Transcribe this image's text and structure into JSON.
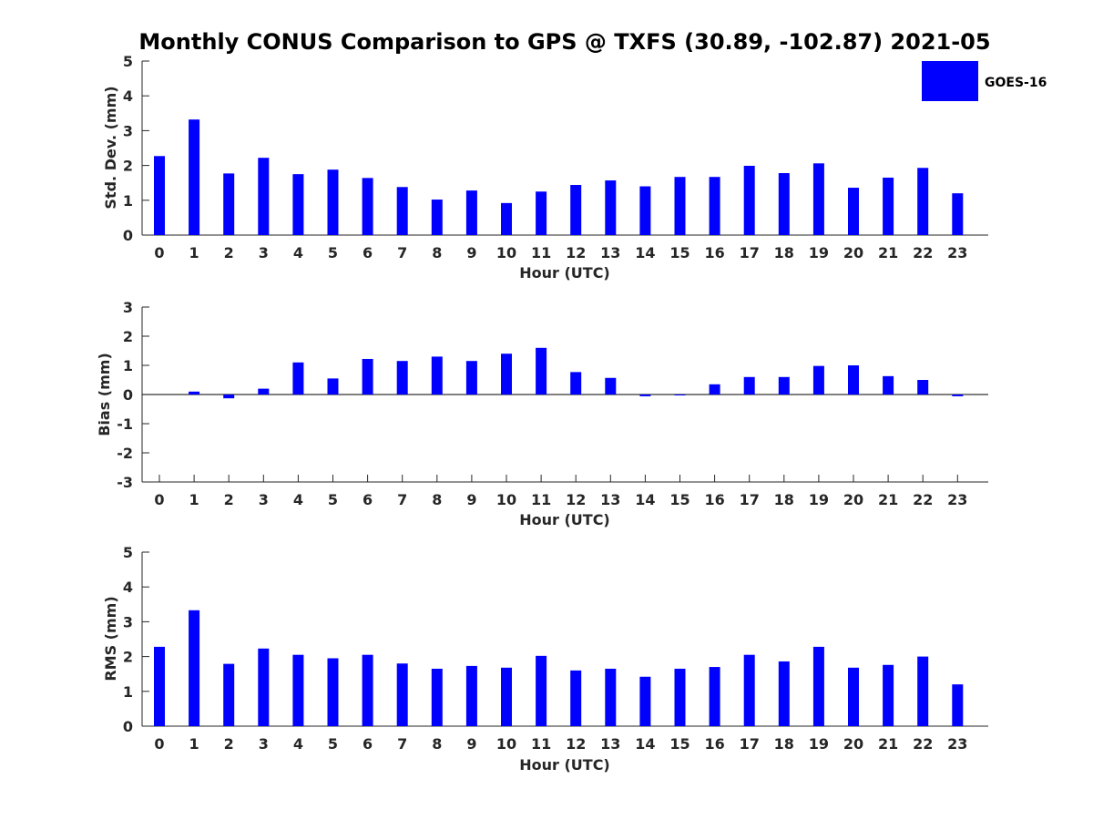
{
  "title": "Monthly CONUS Comparison to GPS @ TXFS (30.89, -102.87) 2021-05",
  "legend": {
    "label": "GOES-16",
    "color": "#0000ff"
  },
  "chart_data": [
    {
      "type": "bar",
      "name": "std-dev",
      "categories": [
        "0",
        "1",
        "2",
        "3",
        "4",
        "5",
        "6",
        "7",
        "8",
        "9",
        "10",
        "11",
        "12",
        "13",
        "14",
        "15",
        "16",
        "17",
        "18",
        "19",
        "20",
        "21",
        "22",
        "23"
      ],
      "series": [
        {
          "name": "GOES-16",
          "values": [
            2.27,
            3.32,
            1.77,
            2.22,
            1.75,
            1.88,
            1.64,
            1.38,
            1.02,
            1.28,
            0.92,
            1.25,
            1.44,
            1.57,
            1.4,
            1.67,
            1.67,
            1.99,
            1.78,
            2.06,
            1.36,
            1.65,
            1.93,
            1.2
          ]
        }
      ],
      "xlabel": "Hour (UTC)",
      "ylabel": "Std. Dev. (mm)",
      "ylim": [
        0,
        5
      ],
      "yticks": [
        0,
        1,
        2,
        3,
        4,
        5
      ]
    },
    {
      "type": "bar",
      "name": "bias",
      "categories": [
        "0",
        "1",
        "2",
        "3",
        "4",
        "5",
        "6",
        "7",
        "8",
        "9",
        "10",
        "11",
        "12",
        "13",
        "14",
        "15",
        "16",
        "17",
        "18",
        "19",
        "20",
        "21",
        "22",
        "23"
      ],
      "series": [
        {
          "name": "GOES-16",
          "values": [
            0.0,
            0.1,
            -0.13,
            0.2,
            1.1,
            0.55,
            1.22,
            1.15,
            1.3,
            1.15,
            1.4,
            1.6,
            0.77,
            0.57,
            -0.06,
            -0.03,
            0.35,
            0.6,
            0.6,
            0.98,
            1.0,
            0.63,
            0.5,
            -0.06
          ]
        }
      ],
      "xlabel": "Hour (UTC)",
      "ylabel": "Bias (mm)",
      "ylim": [
        -3,
        3
      ],
      "yticks": [
        -3,
        -2,
        -1,
        0,
        1,
        2,
        3
      ],
      "zero_line": true
    },
    {
      "type": "bar",
      "name": "rms",
      "categories": [
        "0",
        "1",
        "2",
        "3",
        "4",
        "5",
        "6",
        "7",
        "8",
        "9",
        "10",
        "11",
        "12",
        "13",
        "14",
        "15",
        "16",
        "17",
        "18",
        "19",
        "20",
        "21",
        "22",
        "23"
      ],
      "series": [
        {
          "name": "GOES-16",
          "values": [
            2.28,
            3.33,
            1.79,
            2.23,
            2.05,
            1.95,
            2.05,
            1.8,
            1.65,
            1.73,
            1.68,
            2.02,
            1.6,
            1.65,
            1.42,
            1.65,
            1.7,
            2.05,
            1.86,
            2.28,
            1.68,
            1.76,
            2.0,
            1.2
          ]
        }
      ],
      "xlabel": "Hour (UTC)",
      "ylabel": "RMS (mm)",
      "ylim": [
        0,
        5
      ],
      "yticks": [
        0,
        1,
        2,
        3,
        4,
        5
      ]
    }
  ]
}
